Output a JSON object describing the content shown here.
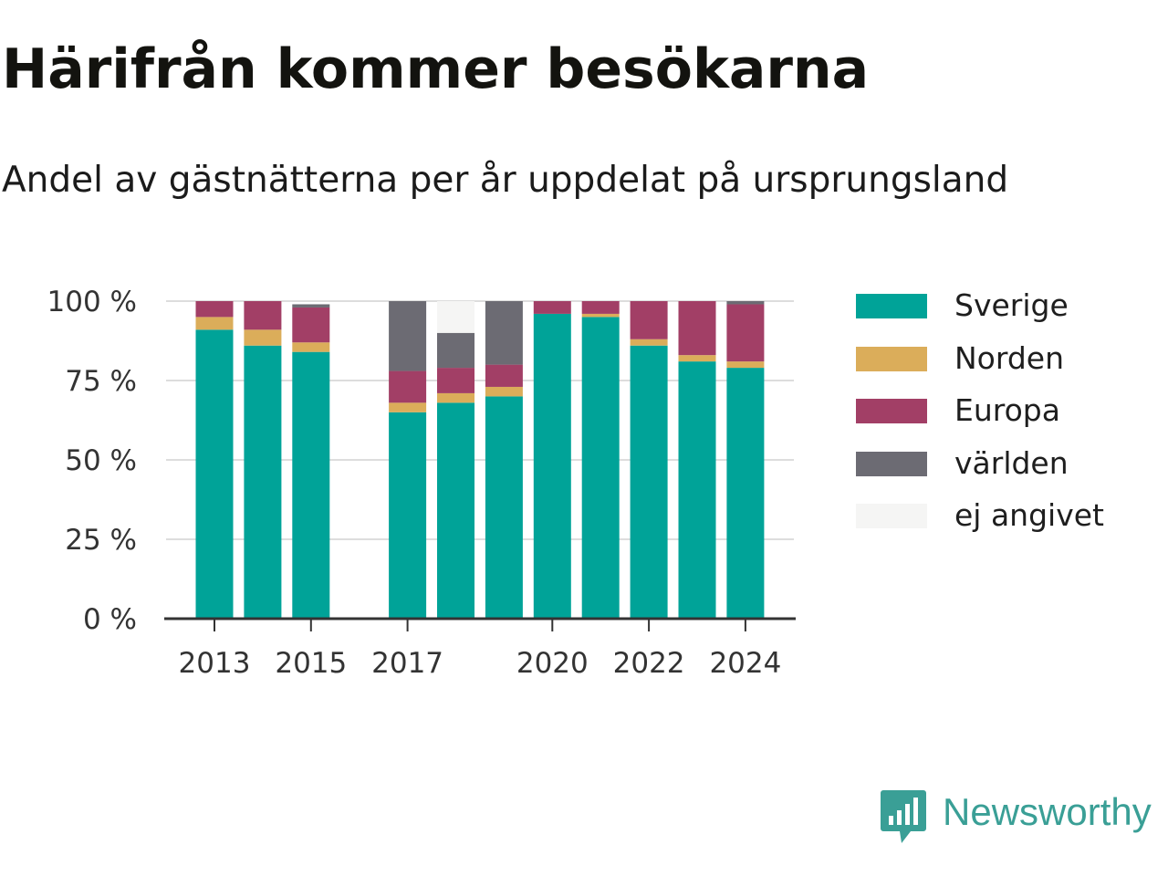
{
  "title": "Härifrån kommer besökarna",
  "subtitle": "Andel av gästnätterna per år uppdelat på ursprungsland",
  "logo": {
    "text": "Newsworthy",
    "icon": "bar-chart-speech-bubble-icon",
    "color": "#3a9f96"
  },
  "chart_data": {
    "type": "bar",
    "stacked": true,
    "categories": [
      "2013",
      "2014",
      "2015",
      "2016",
      "2017",
      "2018",
      "2019",
      "2020",
      "2021",
      "2022",
      "2023",
      "2024"
    ],
    "x_tick_labels": [
      "2013",
      "2015",
      "2017",
      "2020",
      "2022",
      "2024"
    ],
    "y_tick_labels": [
      "0 %",
      "25 %",
      "50 %",
      "75 %",
      "100 %"
    ],
    "y_ticks": [
      0,
      25,
      50,
      75,
      100
    ],
    "ylim": [
      0,
      100
    ],
    "grid": true,
    "legend_position": "right",
    "series": [
      {
        "name": "Sverige",
        "color": "#00a398",
        "values": [
          91,
          86,
          84,
          null,
          65,
          68,
          70,
          96,
          95,
          86,
          81,
          79
        ]
      },
      {
        "name": "Norden",
        "color": "#dbad5a",
        "values": [
          4,
          5,
          3,
          null,
          3,
          3,
          3,
          0,
          1,
          2,
          2,
          2
        ]
      },
      {
        "name": "Europa",
        "color": "#a23f66",
        "values": [
          5,
          9,
          11,
          null,
          10,
          8,
          7,
          4,
          4,
          12,
          17,
          18
        ]
      },
      {
        "name": "världen",
        "color": "#6c6b73",
        "values": [
          0,
          0,
          1,
          null,
          22,
          11,
          20,
          0,
          0,
          0,
          0,
          1
        ]
      },
      {
        "name": "ej angivet",
        "color": "#f5f5f4",
        "values": [
          0,
          0,
          0,
          null,
          0,
          10,
          0,
          0,
          0,
          0,
          0,
          0
        ]
      }
    ]
  }
}
